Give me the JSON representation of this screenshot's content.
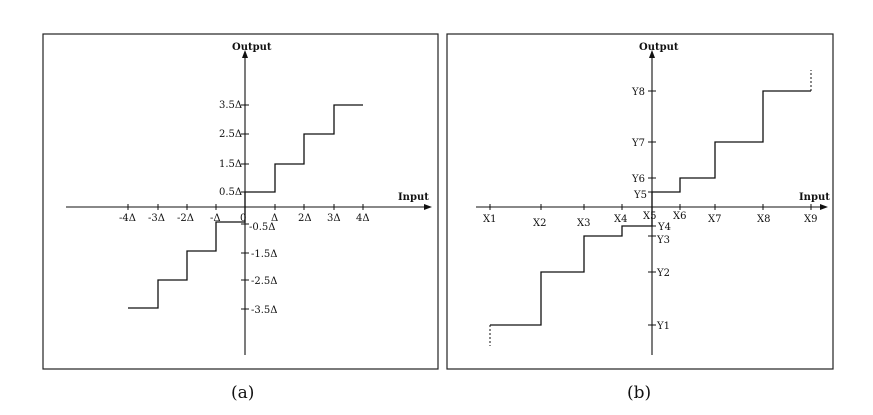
{
  "panels": [
    {
      "caption": "(a)",
      "y_axis_title": "Output",
      "x_axis_title": "Input",
      "x_tick_labels": [
        "-4Δ",
        "-3Δ",
        "-2Δ",
        "-Δ",
        "0",
        "Δ",
        "2Δ",
        "3Δ",
        "4Δ"
      ],
      "y_tick_labels_positive": [
        "3.5Δ",
        "2.5Δ",
        "1.5Δ",
        "0.5Δ"
      ],
      "y_tick_labels_negative": [
        "-0.5Δ",
        "-1.5Δ",
        "-2.5Δ",
        "-3.5Δ"
      ]
    },
    {
      "caption": "(b)",
      "y_axis_title": "Output",
      "x_axis_title": "Input",
      "x_tick_labels": [
        "X1",
        "X2",
        "X3",
        "X4",
        "X5",
        "X6",
        "X7",
        "X8",
        "X9"
      ],
      "y_tick_labels_upper": [
        "Y8",
        "Y7",
        "Y6",
        "Y5"
      ],
      "y_tick_labels_lower": [
        "Y4",
        "Y3",
        "Y2",
        "Y1"
      ]
    }
  ]
}
